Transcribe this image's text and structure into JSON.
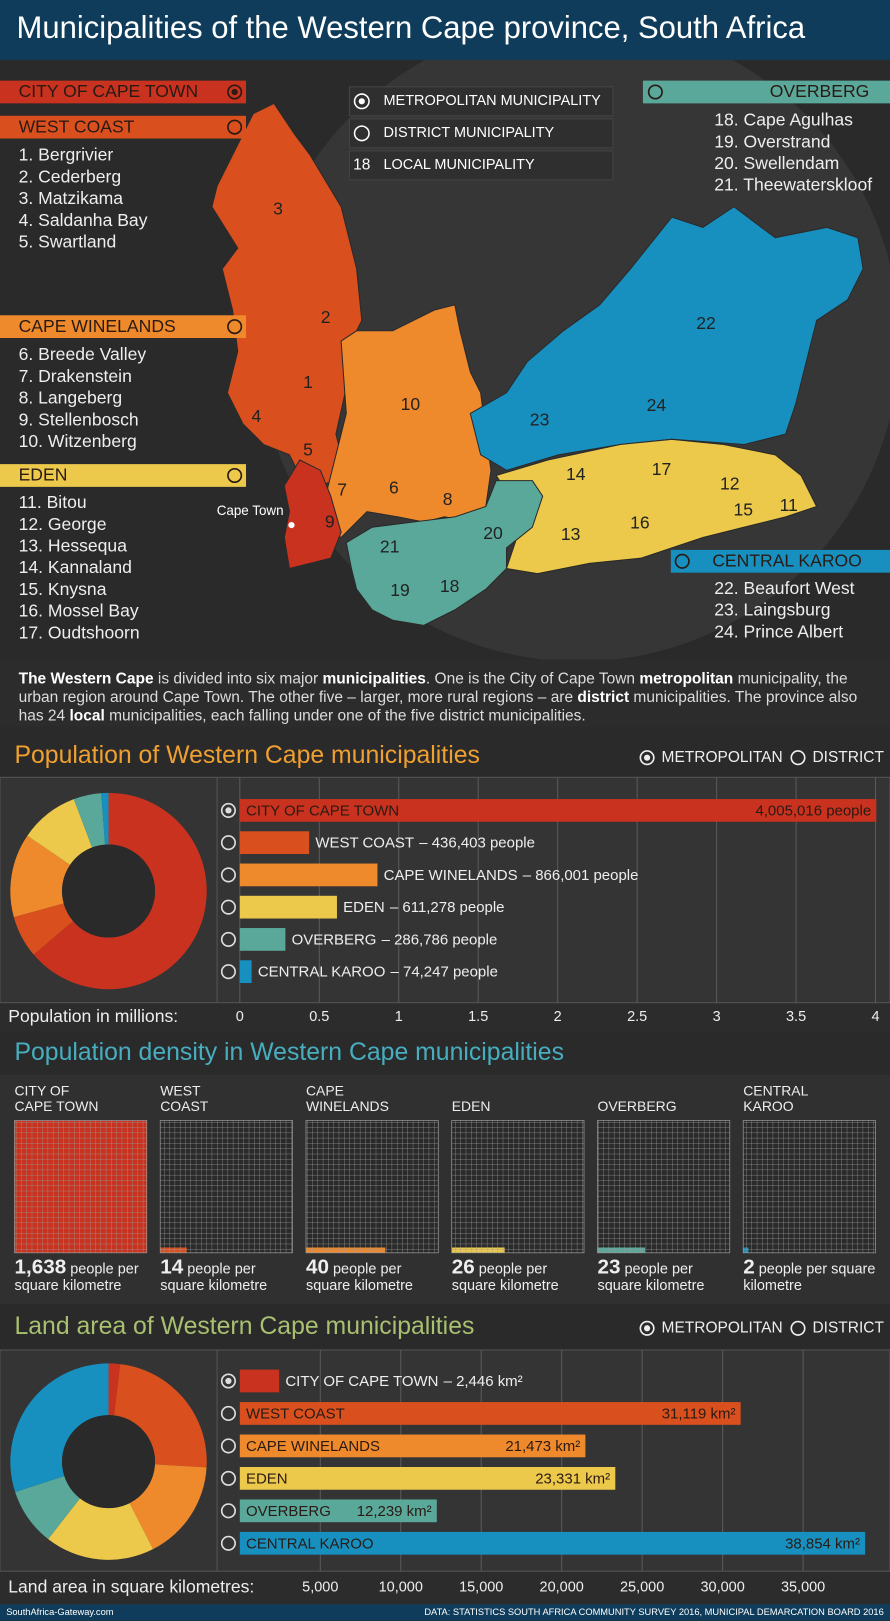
{
  "header": {
    "title": "Municipalities of the Western Cape province, South Africa"
  },
  "map": {
    "legend": {
      "metropolitan": "METROPOLITAN MUNICIPALITY",
      "district": "DISTRICT MUNICIPALITY",
      "local_number": "18",
      "local": "LOCAL MUNICIPALITY"
    },
    "groups": [
      {
        "name": "CITY OF CAPE TOWN",
        "kind": "metropolitan",
        "color": "#c8321e",
        "items": []
      },
      {
        "name": "WEST COAST",
        "kind": "district",
        "color": "#d9501e",
        "items": [
          "1. Bergrivier",
          "2. Cederberg",
          "3. Matzikama",
          "4. Saldanha Bay",
          "5. Swartland"
        ]
      },
      {
        "name": "CAPE WINELANDS",
        "kind": "district",
        "color": "#ef8a2c",
        "items": [
          "6. Breede Valley",
          "7. Drakenstein",
          "8. Langeberg",
          "9. Stellenbosch",
          "10. Witzenberg"
        ]
      },
      {
        "name": "EDEN",
        "kind": "district",
        "color": "#ecc94a",
        "items": [
          "11. Bitou",
          "12. George",
          "13. Hessequa",
          "14. Kannaland",
          "15. Knysna",
          "16. Mossel Bay",
          "17. Oudtshoorn"
        ]
      },
      {
        "name": "OVERBERG",
        "kind": "district",
        "color": "#5aa89a",
        "items": [
          "18. Cape Agulhas",
          "19. Overstrand",
          "20. Swellendam",
          "21. Theewaterskloof"
        ]
      },
      {
        "name": "CENTRAL KAROO",
        "kind": "district",
        "color": "#1790c0",
        "items": [
          "22. Beaufort West",
          "23. Laingsburg",
          "24. Prince Albert"
        ]
      }
    ],
    "region_labels": [
      "1",
      "2",
      "3",
      "4",
      "5",
      "6",
      "7",
      "8",
      "9",
      "10",
      "11",
      "12",
      "13",
      "14",
      "15",
      "16",
      "17",
      "18",
      "19",
      "20",
      "21",
      "22",
      "23",
      "24"
    ],
    "city_label": "Cape Town"
  },
  "description": [
    {
      "text": "The Western Cape",
      "bold": true
    },
    {
      "text": " is divided into six major "
    },
    {
      "text": "municipalities",
      "bold": true
    },
    {
      "text": ". One is the City of Cape Town "
    },
    {
      "text": "metropolitan",
      "bold": true
    },
    {
      "text": " municipality, the urban region around Cape Town. The other five – larger, more rural regions – are "
    },
    {
      "text": "district",
      "bold": true
    },
    {
      "text": " municipalities. The province also has 24 "
    },
    {
      "text": "local",
      "bold": true
    },
    {
      "text": " municipalities, each falling under one of the five district municipalities."
    }
  ],
  "chart_data": [
    {
      "type": "bar",
      "orientation": "horizontal",
      "title": "Population of Western Cape municipalities",
      "title_color": "#f0a030",
      "legend": {
        "metropolitan": "METROPOLITAN",
        "district": "DISTRICT"
      },
      "categories": [
        "CITY OF CAPE TOWN",
        "WEST COAST",
        "CAPE WINELANDS",
        "EDEN",
        "OVERBERG",
        "CENTRAL KAROO"
      ],
      "kinds": [
        "metropolitan",
        "district",
        "district",
        "district",
        "district",
        "district"
      ],
      "values": [
        4.005016,
        0.436403,
        0.866001,
        0.611278,
        0.286786,
        0.074247
      ],
      "value_labels": [
        "4,005,016 people",
        "– 436,403 people",
        "– 866,001 people",
        "– 611,278 people",
        "– 286,786 people",
        "– 74,247 people"
      ],
      "colors": [
        "#c8321e",
        "#d9501e",
        "#ef8a2c",
        "#ecc94a",
        "#5aa89a",
        "#1790c0"
      ],
      "xlabel": "Population in millions:",
      "xlim": [
        0,
        4
      ],
      "xticks": [
        0,
        0.5,
        1,
        1.5,
        2,
        2.5,
        3,
        3.5,
        4
      ],
      "grid": true
    },
    {
      "type": "waffle",
      "title": "Population density in Western Cape municipalities",
      "title_color": "#47aec0",
      "categories": [
        "CITY OF CAPE TOWN",
        "WEST COAST",
        "CAPE WINELANDS",
        "EDEN",
        "OVERBERG",
        "CENTRAL KAROO"
      ],
      "values": [
        1638,
        14,
        40,
        26,
        23,
        2
      ],
      "value_labels": [
        "1,638",
        "14",
        "40",
        "26",
        "23",
        "2"
      ],
      "unit_label": "people per square kilometre",
      "colors": [
        "#c8321e",
        "#d9501e",
        "#ef8a2c",
        "#ecc94a",
        "#5aa89a",
        "#1790c0"
      ]
    },
    {
      "type": "bar",
      "orientation": "horizontal",
      "title": "Land area of Western Cape municipalities",
      "title_color": "#a8c070",
      "legend": {
        "metropolitan": "METROPOLITAN",
        "district": "DISTRICT"
      },
      "categories": [
        "CITY OF CAPE TOWN",
        "WEST COAST",
        "CAPE WINELANDS",
        "EDEN",
        "OVERBERG",
        "CENTRAL KAROO"
      ],
      "kinds": [
        "metropolitan",
        "district",
        "district",
        "district",
        "district",
        "district"
      ],
      "values": [
        2446,
        31119,
        21473,
        23331,
        12239,
        38854
      ],
      "value_labels": [
        "– 2,446 km²",
        "31,119 km²",
        "21,473 km²",
        "23,331 km²",
        "12,239 km²",
        "38,854 km²"
      ],
      "colors": [
        "#c8321e",
        "#d9501e",
        "#ef8a2c",
        "#ecc94a",
        "#5aa89a",
        "#1790c0"
      ],
      "xlabel": "Land area in square kilometres:",
      "xlim": [
        0,
        39500
      ],
      "xticks": [
        {
          "value": 5000,
          "label": "5,000"
        },
        {
          "value": 10000,
          "label": "10,000"
        },
        {
          "value": 15000,
          "label": "15,000"
        },
        {
          "value": 20000,
          "label": "20,000"
        },
        {
          "value": 25000,
          "label": "25,000"
        },
        {
          "value": 30000,
          "label": "30,000"
        },
        {
          "value": 35000,
          "label": "35,000"
        }
      ],
      "grid": true
    }
  ],
  "footer": {
    "site": "SouthAfrica-Gateway.com",
    "source": "DATA: STATISTICS SOUTH AFRICA COMMUNITY SURVEY 2016, MUNICIPAL DEMARCATION BOARD 2016"
  }
}
